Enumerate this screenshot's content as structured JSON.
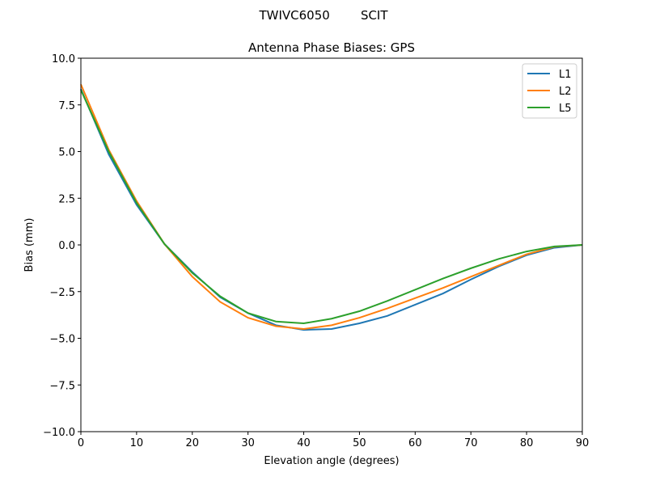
{
  "chart_data": {
    "type": "line",
    "suptitle": "TWIVC6050        SCIT",
    "title": "Antenna Phase Biases: GPS",
    "xlabel": "Elevation angle (degrees)",
    "ylabel": "Bias (mm)",
    "xlim": [
      0,
      90
    ],
    "ylim": [
      -10,
      10
    ],
    "xticks": [
      "0",
      "10",
      "20",
      "30",
      "40",
      "50",
      "60",
      "70",
      "80",
      "90"
    ],
    "yticks": [
      "10.0",
      "7.5",
      "5.0",
      "2.5",
      "0.0",
      "−2.5",
      "−5.0",
      "−7.5",
      "−10.0"
    ],
    "grid": false,
    "legend_position": "top-right",
    "x": [
      0,
      5,
      10,
      15,
      20,
      25,
      30,
      35,
      40,
      45,
      50,
      55,
      60,
      65,
      70,
      75,
      80,
      85,
      90
    ],
    "series": [
      {
        "name": "L1",
        "color": "#1f77b4",
        "values": [
          8.35,
          4.85,
          2.15,
          0.05,
          -1.45,
          -2.8,
          -3.65,
          -4.3,
          -4.55,
          -4.5,
          -4.2,
          -3.8,
          -3.2,
          -2.6,
          -1.85,
          -1.15,
          -0.55,
          -0.15,
          0
        ]
      },
      {
        "name": "L2",
        "color": "#ff7f0e",
        "values": [
          8.6,
          5.1,
          2.35,
          0.05,
          -1.7,
          -3.05,
          -3.9,
          -4.35,
          -4.5,
          -4.3,
          -3.9,
          -3.4,
          -2.85,
          -2.3,
          -1.7,
          -1.1,
          -0.5,
          -0.1,
          0
        ]
      },
      {
        "name": "L5",
        "color": "#2ca02c",
        "values": [
          8.3,
          5.0,
          2.25,
          0.05,
          -1.5,
          -2.75,
          -3.65,
          -4.1,
          -4.2,
          -3.95,
          -3.55,
          -3.0,
          -2.4,
          -1.8,
          -1.25,
          -0.75,
          -0.35,
          -0.08,
          0
        ]
      }
    ]
  }
}
